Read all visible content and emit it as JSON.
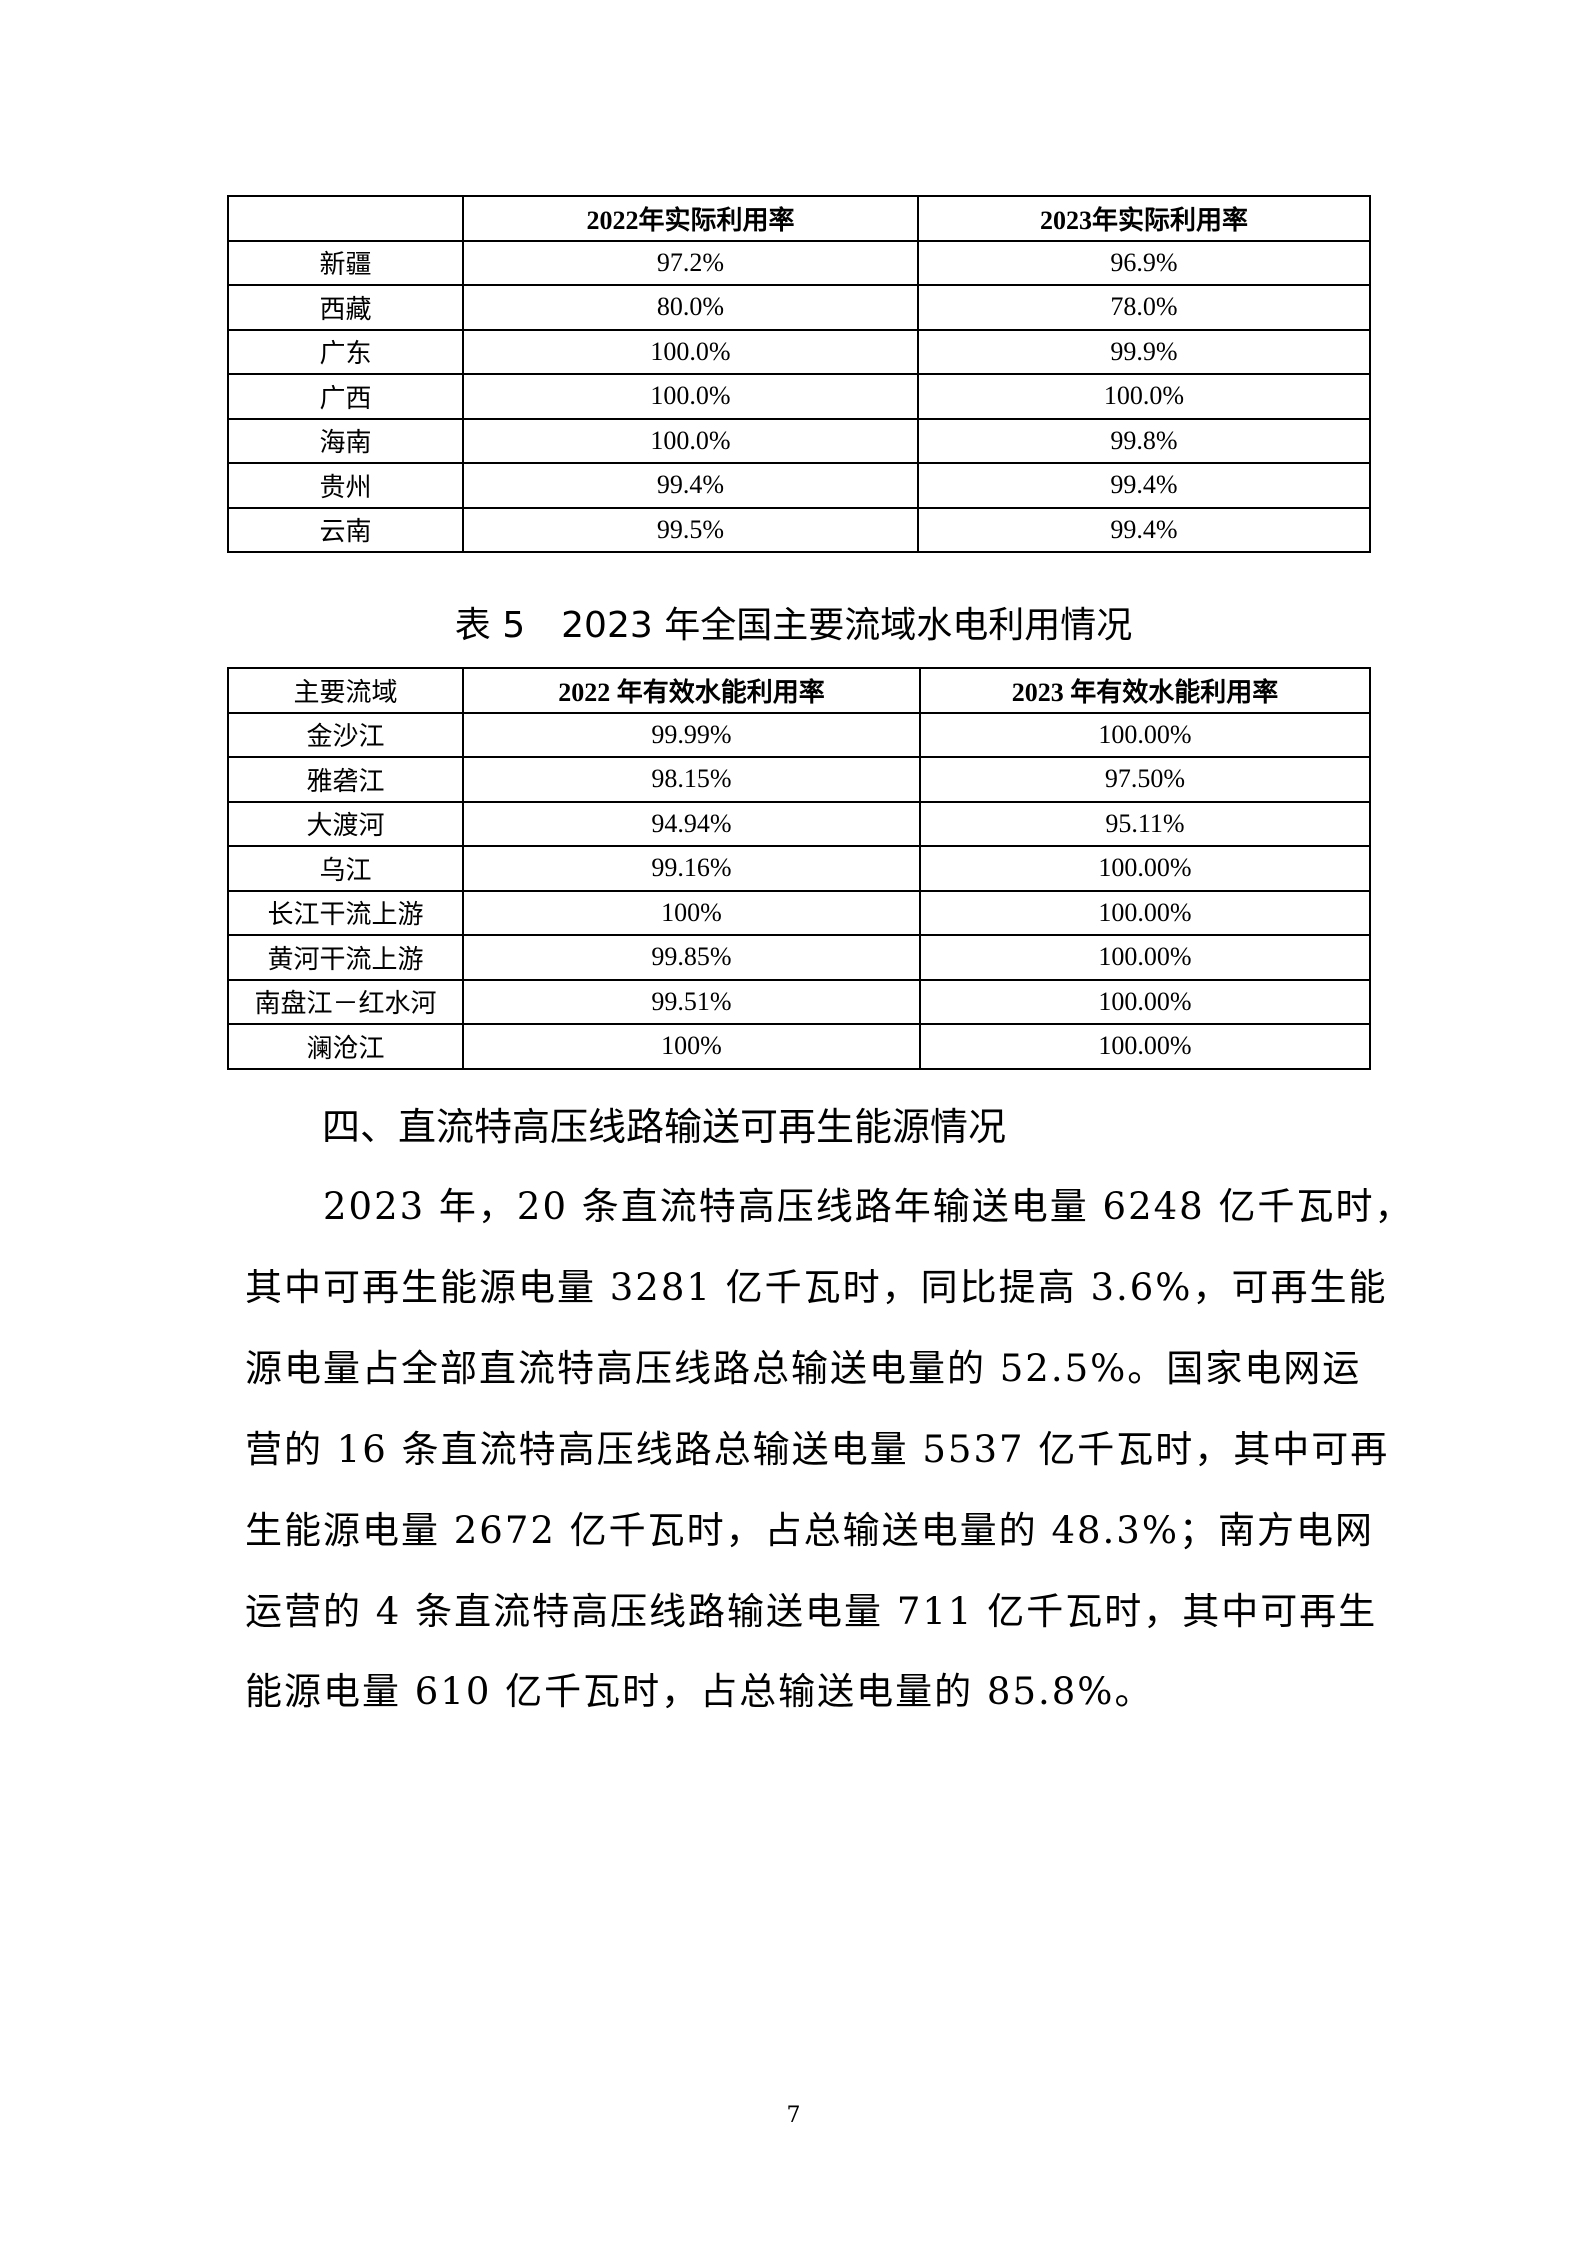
{
  "table4": {
    "headers": [
      "",
      "2022年实际利用率",
      "2023年实际利用率"
    ],
    "rows": [
      [
        "新疆",
        "97.2%",
        "96.9%"
      ],
      [
        "西藏",
        "80.0%",
        "78.0%"
      ],
      [
        "广东",
        "100.0%",
        "99.9%"
      ],
      [
        "广西",
        "100.0%",
        "100.0%"
      ],
      [
        "海南",
        "100.0%",
        "99.8%"
      ],
      [
        "贵州",
        "99.4%",
        "99.4%"
      ],
      [
        "云南",
        "99.5%",
        "99.4%"
      ]
    ]
  },
  "table5": {
    "caption": "表 5　2023 年全国主要流域水电利用情况",
    "headers": [
      "主要流域",
      "2022 年有效水能利用率",
      "2023 年有效水能利用率"
    ],
    "rows": [
      [
        "金沙江",
        "99.99%",
        "100.00%"
      ],
      [
        "雅砻江",
        "98.15%",
        "97.50%"
      ],
      [
        "大渡河",
        "94.94%",
        "95.11%"
      ],
      [
        "乌江",
        "99.16%",
        "100.00%"
      ],
      [
        "长江干流上游",
        "100%",
        "100.00%"
      ],
      [
        "黄河干流上游",
        "99.85%",
        "100.00%"
      ],
      [
        "南盘江－红水河",
        "99.51%",
        "100.00%"
      ],
      [
        "澜沧江",
        "100%",
        "100.00%"
      ]
    ]
  },
  "section": {
    "heading": "四、直流特高压线路输送可再生能源情况",
    "lines": [
      "2023 年，20 条直流特高压线路年输送电量 6248 亿千瓦时，",
      "其中可再生能源电量 3281 亿千瓦时，同比提高 3.6%，可再生能",
      "源电量占全部直流特高压线路总输送电量的 52.5%。国家电网运",
      "营的 16 条直流特高压线路总输送电量 5537 亿千瓦时，其中可再",
      "生能源电量 2672 亿千瓦时，占总输送电量的 48.3%；南方电网",
      "运营的 4 条直流特高压线路输送电量 711 亿千瓦时，其中可再生",
      "能源电量 610 亿千瓦时，占总输送电量的 85.8%。"
    ]
  },
  "page_number": "7"
}
